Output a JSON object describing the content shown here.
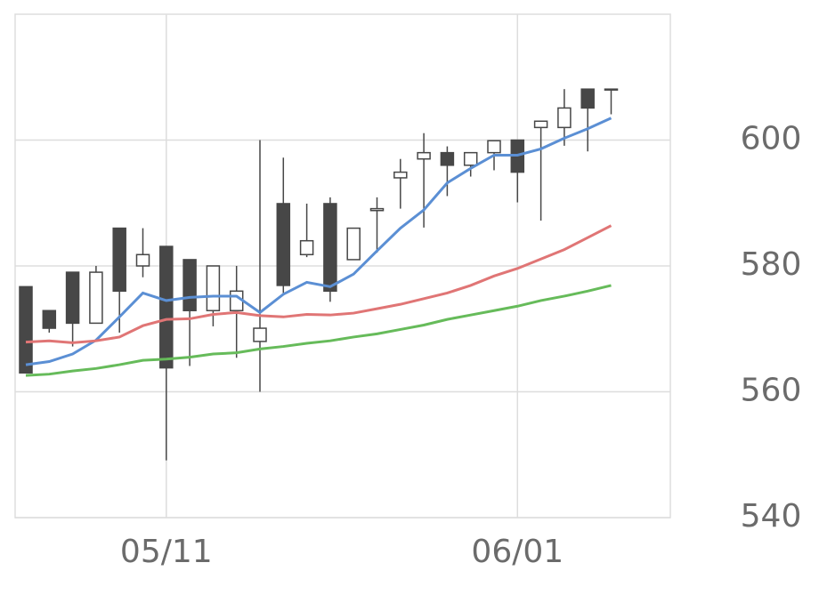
{
  "chart_data": {
    "type": "candlestick",
    "categories": [
      null,
      null,
      null,
      null,
      null,
      null,
      "05/11",
      null,
      null,
      null,
      null,
      null,
      null,
      null,
      null,
      null,
      null,
      null,
      null,
      null,
      null,
      "06/01",
      null,
      null,
      null,
      null
    ],
    "open": [
      576.7,
      572.9,
      579,
      570.9,
      586,
      580,
      583.1,
      581,
      572.9,
      572.9,
      568,
      589.9,
      581.8,
      589.9,
      581,
      588.8,
      594,
      597,
      598,
      596,
      598,
      600,
      602,
      602,
      608.1,
      608.1
    ],
    "high": [
      576.7,
      572.9,
      579,
      580,
      586,
      586,
      583.1,
      581,
      580,
      580,
      600,
      597.2,
      589.9,
      590.9,
      586,
      590.9,
      597,
      601.1,
      599,
      598,
      599.9,
      600,
      603,
      608.1,
      608.1,
      608.1
    ],
    "low": [
      563,
      569.4,
      567.2,
      570.9,
      569.4,
      578.2,
      549.1,
      564.1,
      570.4,
      565.4,
      560,
      575.7,
      581.4,
      574.3,
      581,
      582.1,
      589.1,
      586.1,
      591.1,
      594.2,
      595.2,
      590.1,
      587.2,
      599.1,
      598.2,
      604.1
    ],
    "close": [
      563,
      570.1,
      570.9,
      579,
      576,
      581.8,
      563.8,
      572.9,
      580,
      576,
      570.1,
      576.9,
      584,
      576,
      586,
      589.1,
      594.9,
      598,
      596,
      598,
      599.9,
      594.9,
      603,
      605.1,
      605.1,
      608
    ],
    "up_color": "#ffffff",
    "down_color": "#474747",
    "wick_color": "#474747",
    "series": [
      {
        "color": "#5b8fd4",
        "values": [
          564.3,
          564.8,
          566,
          568.2,
          571.9,
          575.7,
          574.5,
          575,
          575.2,
          575.2,
          572.6,
          575.5,
          577.4,
          576.7,
          578.7,
          582.4,
          586,
          588.9,
          593.2,
          595.5,
          597.6,
          597.6,
          598.6,
          600.3,
          601.8,
          603.5
        ]
      },
      {
        "color": "#e07575",
        "values": [
          567.9,
          568.1,
          567.8,
          568.1,
          568.7,
          570.5,
          571.5,
          571.6,
          572.3,
          572.6,
          572.1,
          571.9,
          572.3,
          572.2,
          572.5,
          573.2,
          573.9,
          574.8,
          575.7,
          576.9,
          578.4,
          579.6,
          581.1,
          582.6,
          584.5,
          586.4
        ]
      },
      {
        "color": "#66bb5a",
        "values": [
          562.6,
          562.8,
          563.3,
          563.7,
          564.3,
          565,
          565.2,
          565.5,
          566,
          566.2,
          566.8,
          567.2,
          567.7,
          568.1,
          568.7,
          569.2,
          569.9,
          570.6,
          571.5,
          572.2,
          572.9,
          573.6,
          574.5,
          575.2,
          576,
          576.9
        ]
      }
    ],
    "ylim": [
      540,
      620
    ],
    "yticks": [
      540,
      560,
      580,
      600
    ],
    "grid": true
  }
}
